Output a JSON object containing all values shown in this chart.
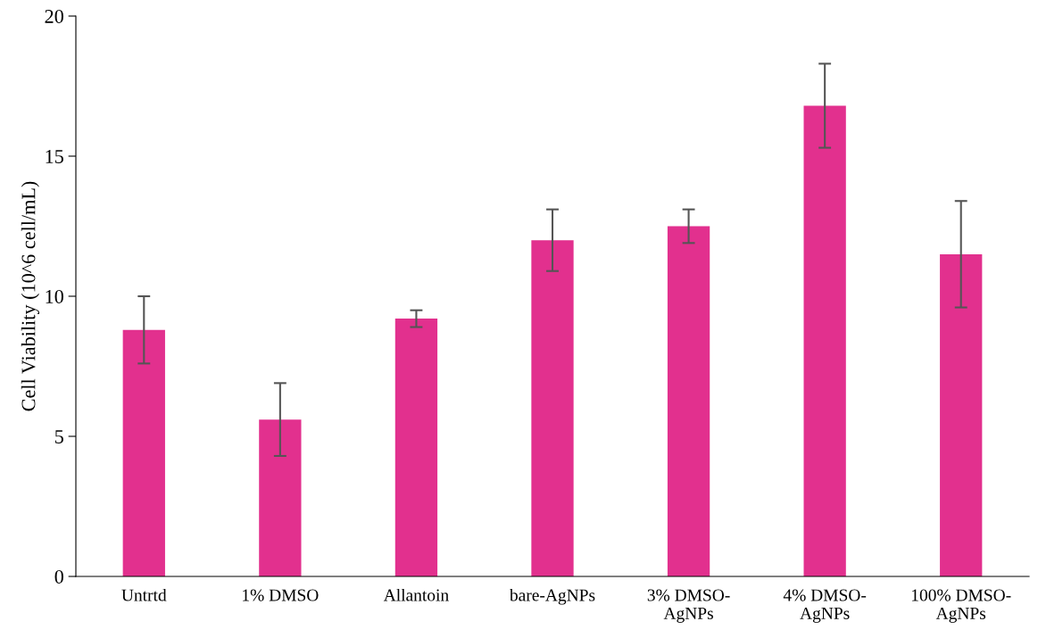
{
  "chart_data": {
    "type": "bar",
    "ylabel": "Cell Viability (10^6 cell/mL)",
    "categories": [
      "Untrtd",
      "1% DMSO",
      "Allantoin",
      "bare-AgNPs",
      "3% DMSO-\nAgNPs",
      "4% DMSO-\nAgNPs",
      "100% DMSO-\nAgNPs"
    ],
    "values": [
      8.8,
      5.6,
      9.2,
      12.0,
      12.5,
      16.8,
      11.5
    ],
    "errors": [
      1.2,
      1.3,
      0.3,
      1.1,
      0.6,
      1.5,
      1.9
    ],
    "color": "#e2308e",
    "ylim": [
      0,
      20
    ],
    "yticks": [
      0,
      5,
      10,
      15,
      20
    ],
    "grid": false,
    "legend": false
  }
}
